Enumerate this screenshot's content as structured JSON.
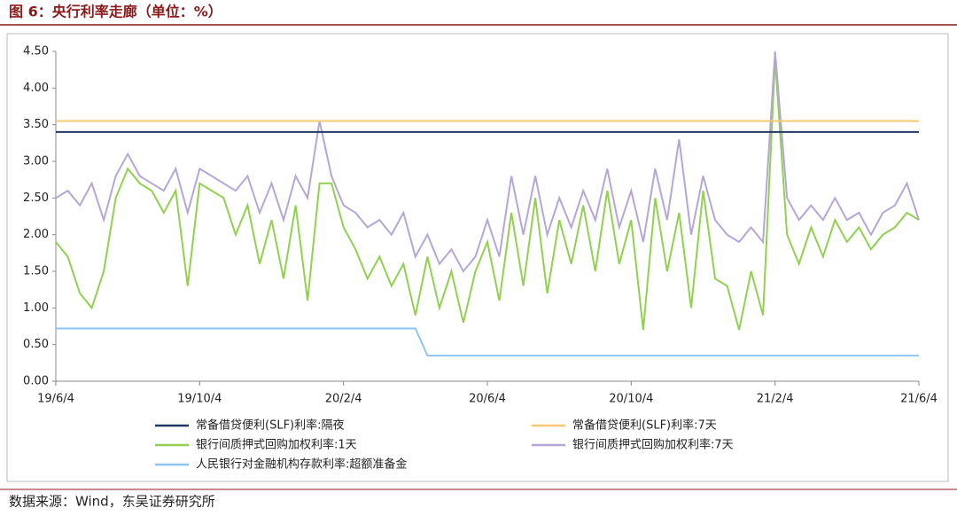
{
  "title": "图 6：央行利率走廊（单位：%）",
  "source": "数据来源：Wind，东吴证券研究所",
  "chart_data": {
    "type": "line",
    "categories": [
      "19/6/4",
      null,
      null,
      null,
      null,
      null,
      null,
      null,
      null,
      null,
      null,
      null,
      "19/10/4",
      null,
      null,
      null,
      null,
      null,
      null,
      null,
      null,
      null,
      null,
      null,
      "20/2/4",
      null,
      null,
      null,
      null,
      null,
      null,
      null,
      null,
      null,
      null,
      null,
      "20/6/4",
      null,
      null,
      null,
      null,
      null,
      null,
      null,
      null,
      null,
      null,
      null,
      "20/10/4",
      null,
      null,
      null,
      null,
      null,
      null,
      null,
      null,
      null,
      null,
      null,
      "21/2/4",
      null,
      null,
      null,
      null,
      null,
      null,
      null,
      null,
      null,
      null,
      null,
      "21/6/4"
    ],
    "ylim": [
      0,
      4.5
    ],
    "yticks": [
      {
        "value": 0,
        "label": "0.00"
      },
      {
        "value": 0.5,
        "label": "0.50"
      },
      {
        "value": 1,
        "label": "1.00"
      },
      {
        "value": 1.5,
        "label": "1.50"
      },
      {
        "value": 2,
        "label": "2.00"
      },
      {
        "value": 2.5,
        "label": "2.50"
      },
      {
        "value": 3,
        "label": "3.00"
      },
      {
        "value": 3.5,
        "label": "3.50"
      },
      {
        "value": 4,
        "label": "4.00"
      },
      {
        "value": 4.5,
        "label": "4.50"
      }
    ],
    "grid": false,
    "series": [
      {
        "name": "常备借贷便利(SLF)利率:隔夜",
        "color": "#1f3864",
        "values": [
          3.4,
          3.4,
          3.4,
          3.4,
          3.4,
          3.4,
          3.4,
          3.4,
          3.4,
          3.4,
          3.4,
          3.4,
          3.4,
          3.4,
          3.4,
          3.4,
          3.4,
          3.4,
          3.4,
          3.4,
          3.4,
          3.4,
          3.4,
          3.4,
          3.4,
          3.4,
          3.4,
          3.4,
          3.4,
          3.4,
          3.4,
          3.4,
          3.4,
          3.4,
          3.4,
          3.4,
          3.4,
          3.4,
          3.4,
          3.4,
          3.4,
          3.4,
          3.4,
          3.4,
          3.4,
          3.4,
          3.4,
          3.4,
          3.4,
          3.4,
          3.4,
          3.4,
          3.4,
          3.4,
          3.4,
          3.4,
          3.4,
          3.4,
          3.4,
          3.4,
          3.4,
          3.4,
          3.4,
          3.4,
          3.4,
          3.4,
          3.4,
          3.4,
          3.4,
          3.4,
          3.4,
          3.4,
          3.4
        ]
      },
      {
        "name": "常备借贷便利(SLF)利率:7天",
        "color": "#f7c873",
        "values": [
          3.55,
          3.55,
          3.55,
          3.55,
          3.55,
          3.55,
          3.55,
          3.55,
          3.55,
          3.55,
          3.55,
          3.55,
          3.55,
          3.55,
          3.55,
          3.55,
          3.55,
          3.55,
          3.55,
          3.55,
          3.55,
          3.55,
          3.55,
          3.55,
          3.55,
          3.55,
          3.55,
          3.55,
          3.55,
          3.55,
          3.55,
          3.55,
          3.55,
          3.55,
          3.55,
          3.55,
          3.55,
          3.55,
          3.55,
          3.55,
          3.55,
          3.55,
          3.55,
          3.55,
          3.55,
          3.55,
          3.55,
          3.55,
          3.55,
          3.55,
          3.55,
          3.55,
          3.55,
          3.55,
          3.55,
          3.55,
          3.55,
          3.55,
          3.55,
          3.55,
          3.55,
          3.55,
          3.55,
          3.55,
          3.55,
          3.55,
          3.55,
          3.55,
          3.55,
          3.55,
          3.55,
          3.55,
          3.55
        ]
      },
      {
        "name": "银行间质押式回购加权利率:1天",
        "color": "#92d050",
        "values": [
          1.9,
          1.7,
          1.2,
          1.0,
          1.5,
          2.5,
          2.9,
          2.7,
          2.6,
          2.3,
          2.6,
          1.3,
          2.7,
          2.6,
          2.5,
          2.0,
          2.4,
          1.6,
          2.2,
          1.4,
          2.4,
          1.1,
          2.7,
          2.7,
          2.1,
          1.8,
          1.4,
          1.7,
          1.3,
          1.6,
          0.9,
          1.7,
          1.0,
          1.5,
          0.8,
          1.5,
          1.9,
          1.1,
          2.3,
          1.3,
          2.5,
          1.2,
          2.2,
          1.6,
          2.4,
          1.5,
          2.6,
          1.6,
          2.2,
          0.7,
          2.5,
          1.5,
          2.3,
          1.0,
          2.6,
          1.4,
          1.3,
          0.7,
          1.5,
          0.9,
          4.4,
          2.0,
          1.6,
          2.1,
          1.7,
          2.2,
          1.9,
          2.1,
          1.8,
          2.0,
          2.1,
          2.3,
          2.2
        ]
      },
      {
        "name": "银行间质押式回购加权利率:7天",
        "color": "#b4a7d6",
        "values": [
          2.5,
          2.6,
          2.4,
          2.7,
          2.2,
          2.8,
          3.1,
          2.8,
          2.7,
          2.6,
          2.9,
          2.3,
          2.9,
          2.8,
          2.7,
          2.6,
          2.8,
          2.3,
          2.7,
          2.2,
          2.8,
          2.5,
          3.55,
          2.8,
          2.4,
          2.3,
          2.1,
          2.2,
          2.0,
          2.3,
          1.7,
          2.0,
          1.6,
          1.8,
          1.5,
          1.7,
          2.2,
          1.7,
          2.8,
          2.0,
          2.8,
          2.0,
          2.5,
          2.1,
          2.6,
          2.2,
          2.9,
          2.1,
          2.6,
          1.9,
          2.9,
          2.2,
          3.3,
          2.0,
          2.8,
          2.2,
          2.0,
          1.9,
          2.1,
          1.9,
          4.5,
          2.5,
          2.2,
          2.4,
          2.2,
          2.5,
          2.2,
          2.3,
          2.0,
          2.3,
          2.4,
          2.7,
          2.2
        ]
      },
      {
        "name": "人民银行对金融机构存款利率:超额准备金",
        "color": "#8ec5f0",
        "values": [
          0.72,
          0.72,
          0.72,
          0.72,
          0.72,
          0.72,
          0.72,
          0.72,
          0.72,
          0.72,
          0.72,
          0.72,
          0.72,
          0.72,
          0.72,
          0.72,
          0.72,
          0.72,
          0.72,
          0.72,
          0.72,
          0.72,
          0.72,
          0.72,
          0.72,
          0.72,
          0.72,
          0.72,
          0.72,
          0.72,
          0.72,
          0.35,
          0.35,
          0.35,
          0.35,
          0.35,
          0.35,
          0.35,
          0.35,
          0.35,
          0.35,
          0.35,
          0.35,
          0.35,
          0.35,
          0.35,
          0.35,
          0.35,
          0.35,
          0.35,
          0.35,
          0.35,
          0.35,
          0.35,
          0.35,
          0.35,
          0.35,
          0.35,
          0.35,
          0.35,
          0.35,
          0.35,
          0.35,
          0.35,
          0.35,
          0.35,
          0.35,
          0.35,
          0.35,
          0.35,
          0.35,
          0.35,
          0.35
        ]
      }
    ]
  }
}
